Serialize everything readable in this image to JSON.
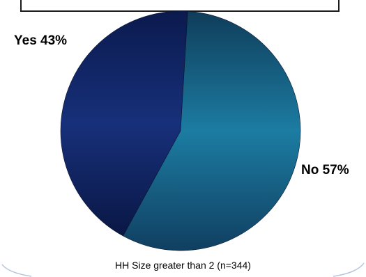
{
  "chart_data": {
    "type": "pie",
    "slices": [
      {
        "label": "Yes",
        "value": 43,
        "display": "43%",
        "color": "#142a6e"
      },
      {
        "label": "No",
        "value": 57,
        "display": "57%",
        "color": "#1a6f93"
      }
    ],
    "caption": "HH Size greater than 2 (n=344)"
  }
}
